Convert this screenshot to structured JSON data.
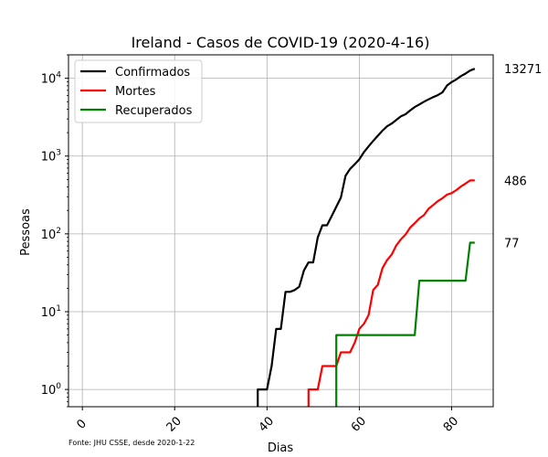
{
  "chart_data": {
    "type": "line",
    "title": "Ireland - Casos de COVID-19 (2020-4-16)",
    "xlabel": "Dias",
    "ylabel": "Pessoas",
    "source_note": "Fonte: JHU CSSE, desde 2020-1-22",
    "xlim": [
      -3,
      89
    ],
    "ylim": [
      0.6,
      20000
    ],
    "yscale": "log",
    "grid": true,
    "legend_position": "top-left",
    "x_ticks": [
      "0",
      "20",
      "40",
      "60",
      "80"
    ],
    "y_ticks": [
      "10^0",
      "10^1",
      "10^2",
      "10^3",
      "10^4"
    ],
    "series": [
      {
        "name": "Confirmados",
        "color": "#000000",
        "end_label": "13271",
        "points": [
          [
            38,
            0.6
          ],
          [
            38,
            1
          ],
          [
            40,
            1
          ],
          [
            41,
            2
          ],
          [
            42,
            6
          ],
          [
            43,
            6
          ],
          [
            44,
            18
          ],
          [
            45,
            18
          ],
          [
            46,
            19
          ],
          [
            47,
            21
          ],
          [
            48,
            34
          ],
          [
            49,
            43
          ],
          [
            50,
            43
          ],
          [
            51,
            90
          ],
          [
            52,
            129
          ],
          [
            53,
            129
          ],
          [
            54,
            169
          ],
          [
            55,
            223
          ],
          [
            56,
            292
          ],
          [
            57,
            557
          ],
          [
            58,
            683
          ],
          [
            59,
            785
          ],
          [
            60,
            906
          ],
          [
            61,
            1125
          ],
          [
            62,
            1329
          ],
          [
            63,
            1564
          ],
          [
            64,
            1819
          ],
          [
            65,
            2121
          ],
          [
            66,
            2415
          ],
          [
            67,
            2615
          ],
          [
            68,
            2910
          ],
          [
            69,
            3235
          ],
          [
            70,
            3447
          ],
          [
            71,
            3849
          ],
          [
            72,
            4273
          ],
          [
            73,
            4604
          ],
          [
            74,
            4994
          ],
          [
            75,
            5364
          ],
          [
            76,
            5709
          ],
          [
            77,
            6074
          ],
          [
            78,
            6574
          ],
          [
            79,
            8089
          ],
          [
            80,
            8928
          ],
          [
            81,
            9655
          ],
          [
            82,
            10647
          ],
          [
            83,
            11479
          ],
          [
            84,
            12547
          ],
          [
            85,
            13271
          ]
        ]
      },
      {
        "name": "Mortes",
        "color": "#ff0000",
        "end_label": "486",
        "points": [
          [
            49,
            0.6
          ],
          [
            49,
            1
          ],
          [
            51,
            1
          ],
          [
            52,
            2
          ],
          [
            55,
            2
          ],
          [
            56,
            3
          ],
          [
            58,
            3
          ],
          [
            59,
            4
          ],
          [
            60,
            6
          ],
          [
            61,
            7
          ],
          [
            62,
            9
          ],
          [
            63,
            19
          ],
          [
            64,
            22
          ],
          [
            65,
            36
          ],
          [
            66,
            46
          ],
          [
            67,
            54
          ],
          [
            68,
            71
          ],
          [
            69,
            85
          ],
          [
            70,
            98
          ],
          [
            71,
            120
          ],
          [
            72,
            137
          ],
          [
            73,
            158
          ],
          [
            74,
            174
          ],
          [
            75,
            210
          ],
          [
            76,
            235
          ],
          [
            77,
            263
          ],
          [
            78,
            287
          ],
          [
            79,
            320
          ],
          [
            80,
            334
          ],
          [
            81,
            365
          ],
          [
            82,
            406
          ],
          [
            83,
            444
          ],
          [
            84,
            486
          ],
          [
            85,
            486
          ]
        ]
      },
      {
        "name": "Recuperados",
        "color": "#008000",
        "end_label": "77",
        "points": [
          [
            55,
            0.6
          ],
          [
            55,
            5
          ],
          [
            72,
            5
          ],
          [
            73,
            25
          ],
          [
            83,
            25
          ],
          [
            84,
            77
          ],
          [
            85,
            77
          ]
        ]
      }
    ]
  }
}
